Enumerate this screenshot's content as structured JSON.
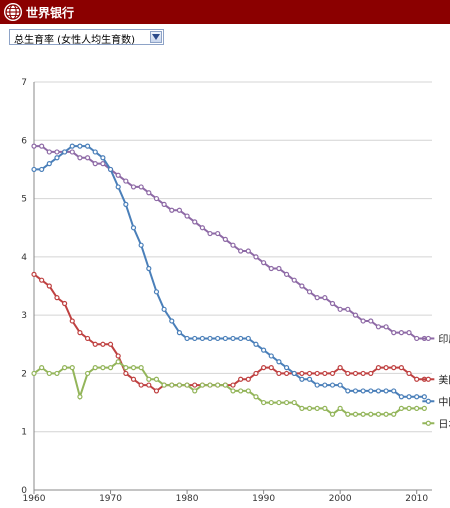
{
  "header": {
    "brand": "世界银行",
    "logo_icon": "globe-icon",
    "bar_color": "#8b0000"
  },
  "selector": {
    "selected": "总生育率 (女性人均生育数)",
    "arrow_icon": "chevron-down-icon"
  },
  "chart_data": {
    "type": "line",
    "title": "",
    "xlabel": "",
    "ylabel": "",
    "xlim": [
      1960,
      2012
    ],
    "ylim": [
      0,
      7
    ],
    "x_ticks": [
      "1960",
      "1970",
      "1980",
      "1990",
      "2000",
      "2010"
    ],
    "y_ticks": [
      "0",
      "1",
      "2",
      "3",
      "4",
      "5",
      "6",
      "7"
    ],
    "grid": true,
    "legend": "right",
    "x": [
      1960,
      1961,
      1962,
      1963,
      1964,
      1965,
      1966,
      1967,
      1968,
      1969,
      1970,
      1971,
      1972,
      1973,
      1974,
      1975,
      1976,
      1977,
      1978,
      1979,
      1980,
      1981,
      1982,
      1983,
      1984,
      1985,
      1986,
      1987,
      1988,
      1989,
      1990,
      1991,
      1992,
      1993,
      1994,
      1995,
      1996,
      1997,
      1998,
      1999,
      2000,
      2001,
      2002,
      2003,
      2004,
      2005,
      2006,
      2007,
      2008,
      2009,
      2010,
      2011
    ],
    "series": [
      {
        "name": "印度",
        "color": "#8e6aa6",
        "values": [
          5.9,
          5.9,
          5.8,
          5.8,
          5.8,
          5.8,
          5.7,
          5.7,
          5.6,
          5.6,
          5.5,
          5.4,
          5.3,
          5.2,
          5.2,
          5.1,
          5.0,
          4.9,
          4.8,
          4.8,
          4.7,
          4.6,
          4.5,
          4.4,
          4.4,
          4.3,
          4.2,
          4.1,
          4.1,
          4.0,
          3.9,
          3.8,
          3.8,
          3.7,
          3.6,
          3.5,
          3.4,
          3.3,
          3.3,
          3.2,
          3.1,
          3.1,
          3.0,
          2.9,
          2.9,
          2.8,
          2.8,
          2.7,
          2.7,
          2.7,
          2.6,
          2.6
        ]
      },
      {
        "name": "美国",
        "color": "#bf4141",
        "values": [
          3.7,
          3.6,
          3.5,
          3.3,
          3.2,
          2.9,
          2.7,
          2.6,
          2.5,
          2.5,
          2.5,
          2.3,
          2.0,
          1.9,
          1.8,
          1.8,
          1.7,
          1.8,
          1.8,
          1.8,
          1.8,
          1.8,
          1.8,
          1.8,
          1.8,
          1.8,
          1.8,
          1.9,
          1.9,
          2.0,
          2.1,
          2.1,
          2.0,
          2.0,
          2.0,
          2.0,
          2.0,
          2.0,
          2.0,
          2.0,
          2.1,
          2.0,
          2.0,
          2.0,
          2.0,
          2.1,
          2.1,
          2.1,
          2.1,
          2.0,
          1.9,
          1.9
        ]
      },
      {
        "name": "中国",
        "color": "#4a7fb9",
        "values": [
          5.5,
          5.5,
          5.6,
          5.7,
          5.8,
          5.9,
          5.9,
          5.9,
          5.8,
          5.7,
          5.5,
          5.2,
          4.9,
          4.5,
          4.2,
          3.8,
          3.4,
          3.1,
          2.9,
          2.7,
          2.6,
          2.6,
          2.6,
          2.6,
          2.6,
          2.6,
          2.6,
          2.6,
          2.6,
          2.5,
          2.4,
          2.3,
          2.2,
          2.1,
          2.0,
          1.9,
          1.9,
          1.8,
          1.8,
          1.8,
          1.8,
          1.7,
          1.7,
          1.7,
          1.7,
          1.7,
          1.7,
          1.7,
          1.6,
          1.6,
          1.6,
          1.6
        ]
      },
      {
        "name": "日本",
        "color": "#93b55a",
        "values": [
          2.0,
          2.1,
          2.0,
          2.0,
          2.1,
          2.1,
          1.6,
          2.0,
          2.1,
          2.1,
          2.1,
          2.2,
          2.1,
          2.1,
          2.1,
          1.9,
          1.9,
          1.8,
          1.8,
          1.8,
          1.8,
          1.7,
          1.8,
          1.8,
          1.8,
          1.8,
          1.7,
          1.7,
          1.7,
          1.6,
          1.5,
          1.5,
          1.5,
          1.5,
          1.5,
          1.4,
          1.4,
          1.4,
          1.4,
          1.3,
          1.4,
          1.3,
          1.3,
          1.3,
          1.3,
          1.3,
          1.3,
          1.3,
          1.4,
          1.4,
          1.4,
          1.4
        ]
      }
    ]
  }
}
